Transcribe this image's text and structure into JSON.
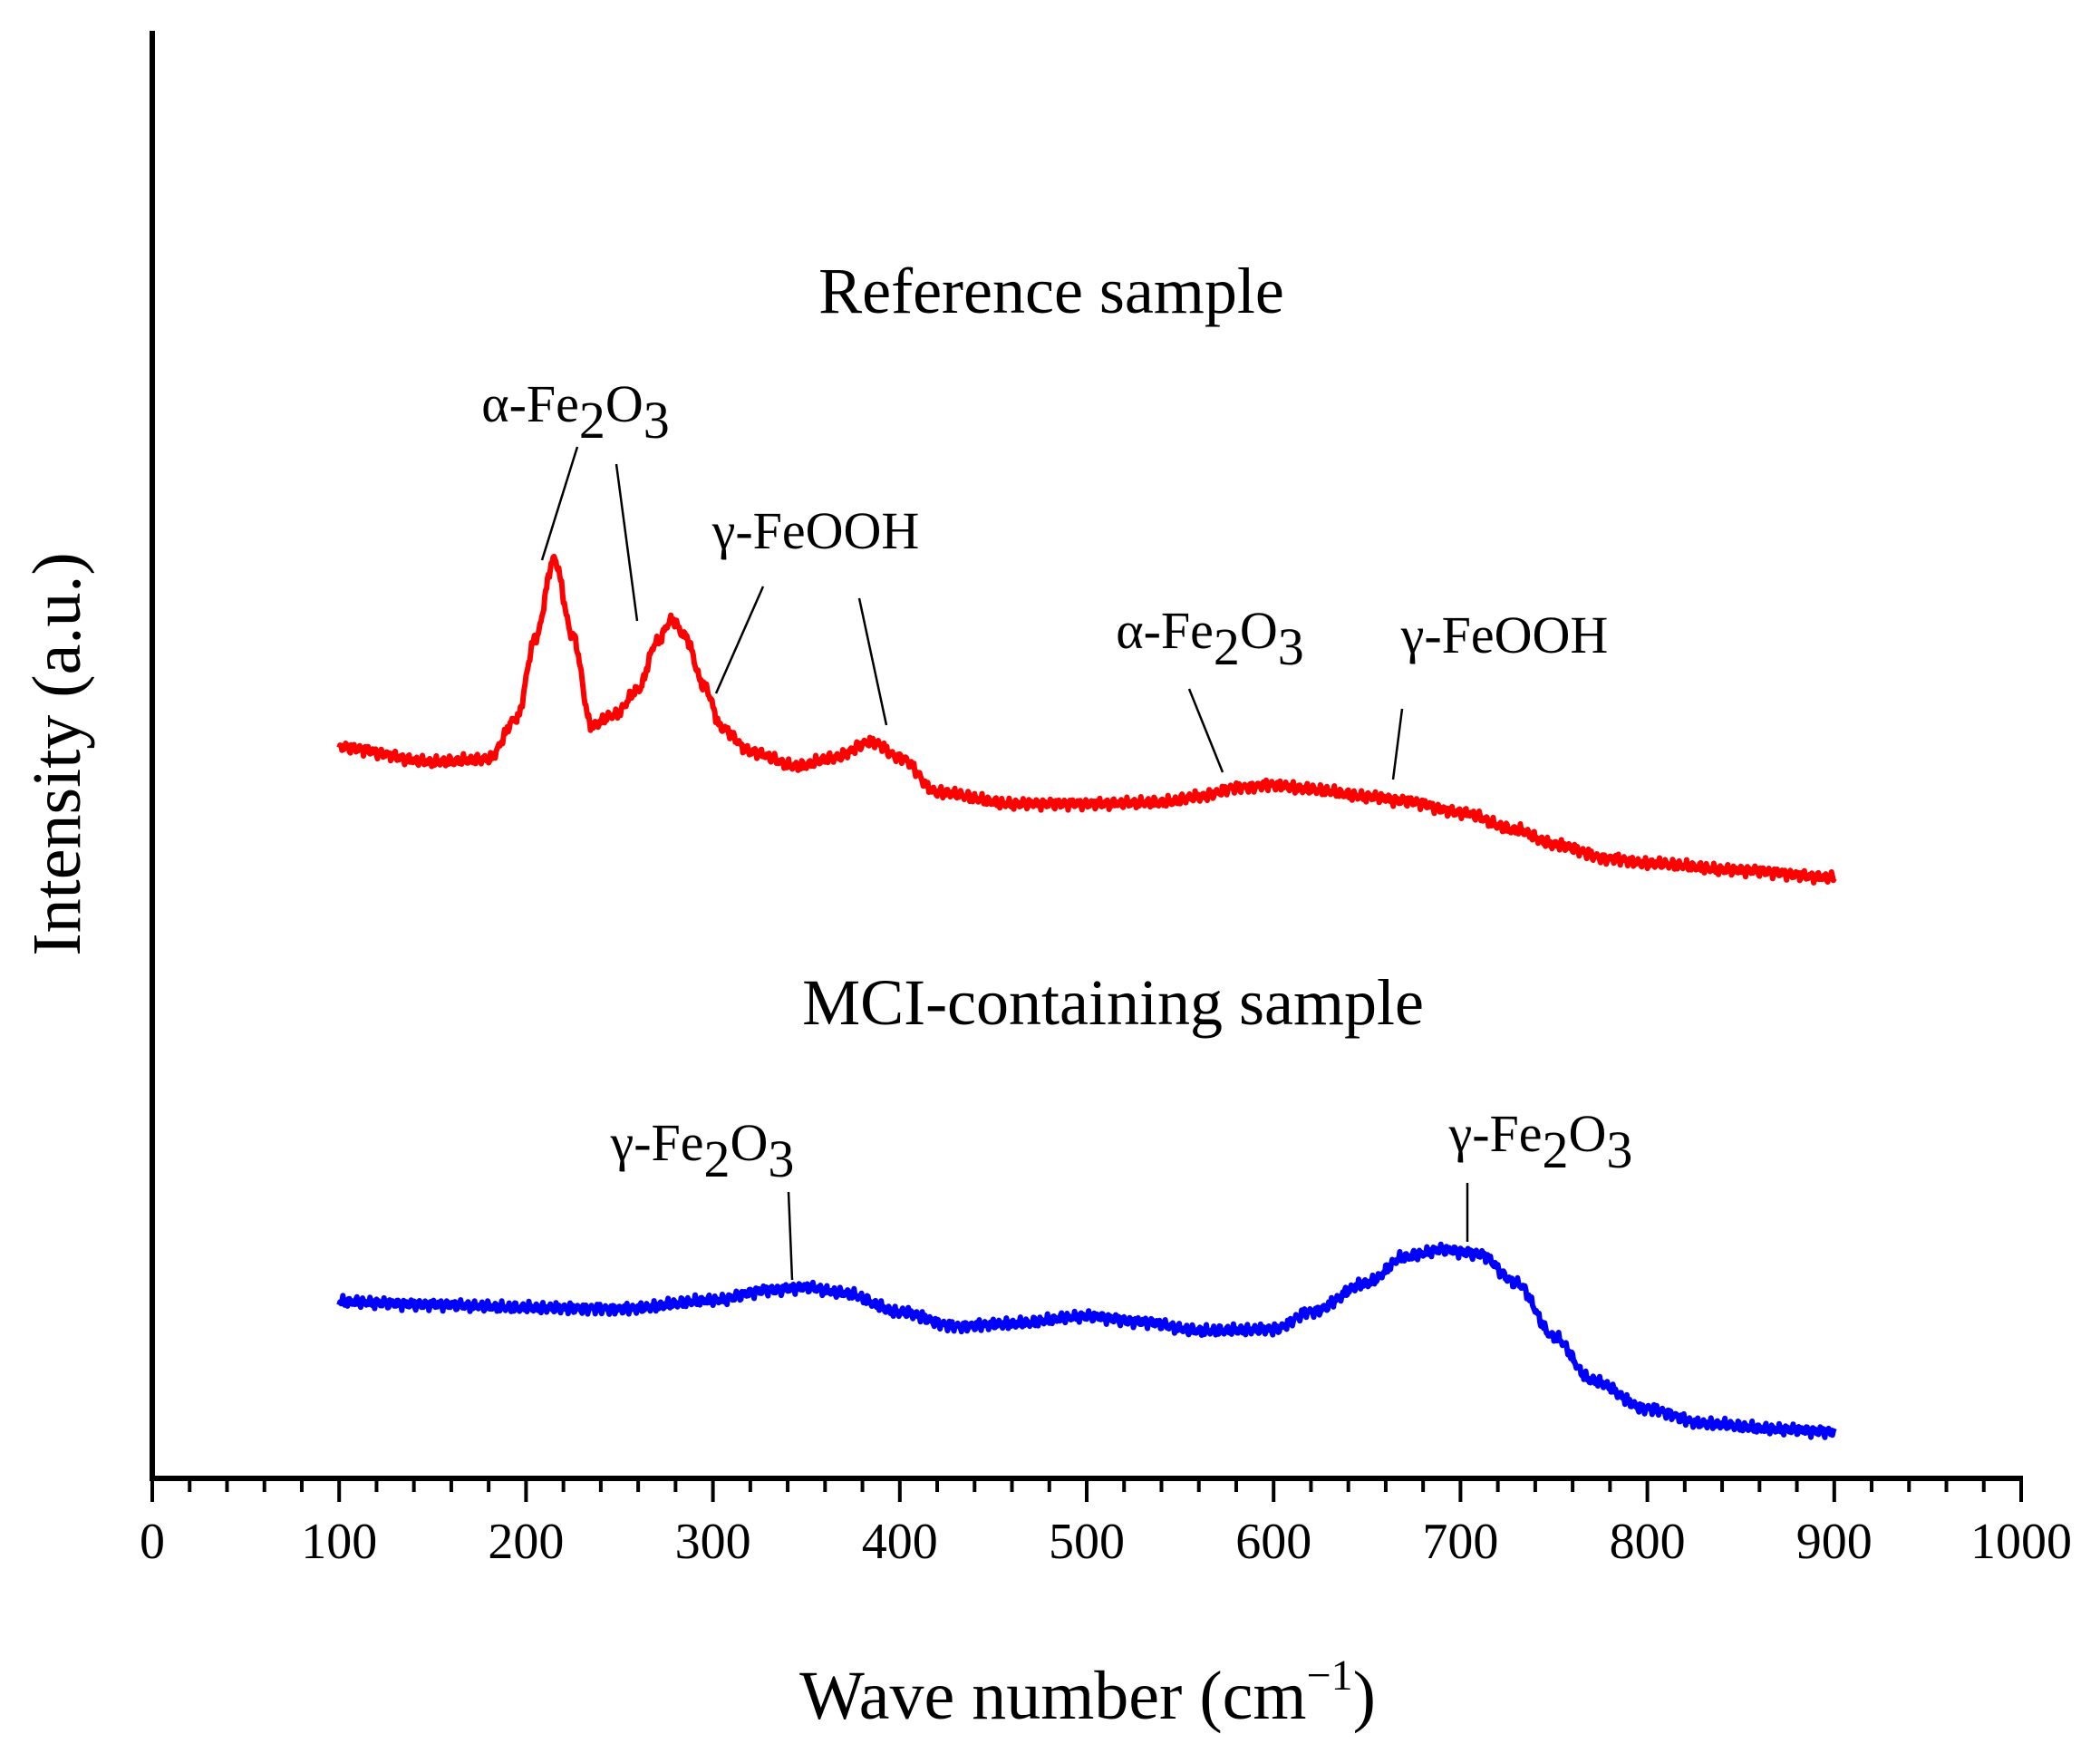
{
  "chart_data": {
    "type": "line",
    "xlabel": "Wave number (cm",
    "xlabel_sup": "−1",
    "xlabel_close": ")",
    "ylabel": "Intensity (a.u.)",
    "xlim": [
      0,
      1000
    ],
    "ylim": [
      0,
      1
    ],
    "x_ticks": [
      "0",
      "100",
      "200",
      "300",
      "400",
      "500",
      "600",
      "700",
      "800",
      "900",
      "1000"
    ],
    "y_ticks_shown": false,
    "grid": false,
    "legend": "none",
    "colors": {
      "reference": "#ff0000",
      "mci": "#0000ff",
      "axis": "#000000"
    },
    "series": [
      {
        "name": "Reference sample",
        "color": "#ff0000",
        "x": [
          100,
          150,
          180,
          195,
          205,
          215,
          225,
          235,
          248,
          260,
          270,
          278,
          285,
          295,
          305,
          320,
          345,
          365,
          385,
          400,
          420,
          460,
          500,
          540,
          560,
          580,
          600,
          620,
          650,
          670,
          700,
          730,
          750,
          780,
          800,
          850,
          900
        ],
        "y": [
          0.505,
          0.495,
          0.497,
          0.525,
          0.58,
          0.635,
          0.582,
          0.52,
          0.528,
          0.545,
          0.578,
          0.593,
          0.582,
          0.548,
          0.518,
          0.502,
          0.492,
          0.498,
          0.509,
          0.498,
          0.474,
          0.466,
          0.466,
          0.467,
          0.471,
          0.477,
          0.479,
          0.476,
          0.471,
          0.468,
          0.46,
          0.448,
          0.438,
          0.428,
          0.425,
          0.42,
          0.415
        ]
      },
      {
        "name": "MCI-containing sample",
        "color": "#0000ff",
        "x": [
          100,
          150,
          200,
          250,
          300,
          330,
          350,
          370,
          400,
          430,
          460,
          500,
          530,
          560,
          600,
          620,
          650,
          670,
          690,
          710,
          730,
          750,
          770,
          800,
          830,
          870,
          900
        ],
        "y": [
          0.122,
          0.12,
          0.118,
          0.117,
          0.123,
          0.13,
          0.132,
          0.128,
          0.115,
          0.105,
          0.107,
          0.112,
          0.108,
          0.102,
          0.103,
          0.115,
          0.135,
          0.153,
          0.158,
          0.155,
          0.135,
          0.098,
          0.068,
          0.048,
          0.038,
          0.034,
          0.032
        ]
      }
    ],
    "annotations": [
      {
        "series": "Reference sample",
        "prefix": "α-Fe",
        "sub": "2",
        "mid": "O",
        "sub2": "3",
        "targets": [
          215,
          260
        ]
      },
      {
        "series": "Reference sample",
        "prefix": "γ-FeOOH",
        "targets": [
          300,
          395
        ]
      },
      {
        "series": "Reference sample",
        "prefix": "α-Fe",
        "sub": "2",
        "mid": "O",
        "sub2": "3",
        "targets": [
          575
        ]
      },
      {
        "series": "Reference sample",
        "prefix": "γ-FeOOH",
        "targets": [
          662
        ]
      },
      {
        "series": "MCI-containing sample",
        "prefix": "γ-Fe",
        "sub": "2",
        "mid": "O",
        "sub2": "3",
        "targets": [
          345
        ]
      },
      {
        "series": "MCI-containing sample",
        "prefix": "γ-Fe",
        "sub": "2",
        "mid": "O",
        "sub2": "3",
        "targets": [
          703
        ]
      }
    ]
  }
}
